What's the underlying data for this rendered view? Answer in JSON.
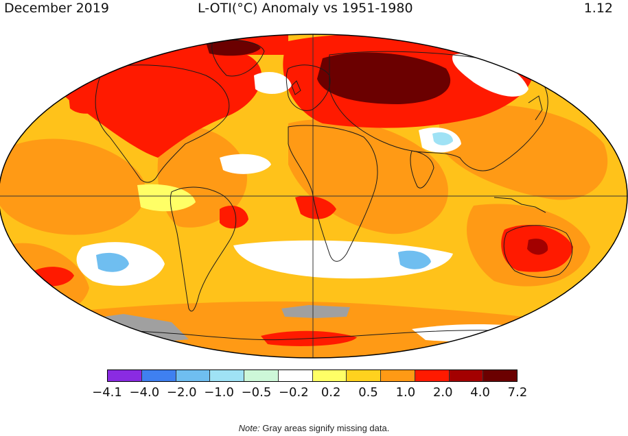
{
  "header": {
    "period": "December 2019",
    "title": "L-OTI(°C) Anomaly vs 1951-1980",
    "global_mean": "1.12"
  },
  "legend": {
    "colors": [
      "#8a2be2",
      "#3f80f0",
      "#6fbef0",
      "#9fe2f5",
      "#cdf7d8",
      "#ffffff",
      "#ffff66",
      "#ffd21e",
      "#ff9a15",
      "#ff1a00",
      "#a30000",
      "#6b0000"
    ],
    "tick_labels": [
      "−4.1",
      "−4.0",
      "−2.0",
      "−1.0",
      "−0.5",
      "−0.2",
      "0.2",
      "0.5",
      "1.0",
      "2.0",
      "4.0",
      "7.2"
    ]
  },
  "note": {
    "prefix": "Note:",
    "text": "Gray areas signify missing data."
  },
  "map": {
    "base_color": "#ffc21a",
    "missing_color": "#a0a0a0",
    "coast_color": "#1a1a1a"
  }
}
